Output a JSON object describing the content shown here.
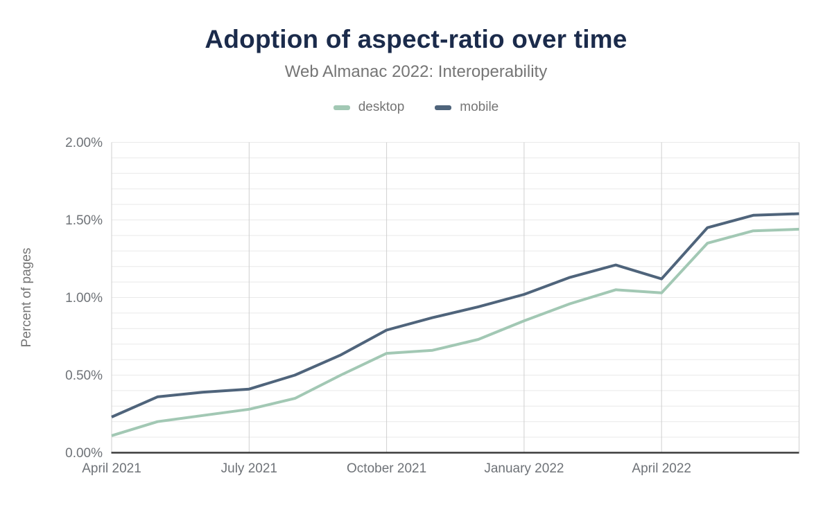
{
  "header": {
    "title": "Adoption of aspect-ratio over time",
    "subtitle": "Web Almanac 2022: Interoperability"
  },
  "legend": {
    "items": [
      {
        "label": "desktop",
        "color": "#a2c8b4"
      },
      {
        "label": "mobile",
        "color": "#4f647b"
      }
    ]
  },
  "chart_data": {
    "type": "line",
    "title": "Adoption of aspect-ratio over time",
    "subtitle": "Web Almanac 2022: Interoperability",
    "xlabel": "",
    "ylabel": "Percent of pages",
    "ylim": [
      0,
      2
    ],
    "y_major_step": 0.5,
    "y_minor_step": 0.1,
    "y_tick_labels": [
      "0.00%",
      "0.50%",
      "1.00%",
      "1.50%",
      "2.00%"
    ],
    "grid": "horizontal minor gridlines every 0.1%, vertical gridlines at quarterly ticks",
    "legend_position": "top",
    "x": [
      "2021-04",
      "2021-05",
      "2021-06",
      "2021-07",
      "2021-08",
      "2021-09",
      "2021-10",
      "2021-11",
      "2021-12",
      "2022-01",
      "2022-02",
      "2022-03",
      "2022-04",
      "2022-05",
      "2022-06",
      "2022-07"
    ],
    "x_ticks": [
      {
        "index": 0,
        "label": "April 2021"
      },
      {
        "index": 3,
        "label": "July 2021"
      },
      {
        "index": 6,
        "label": "October 2021"
      },
      {
        "index": 9,
        "label": "January 2022"
      },
      {
        "index": 12,
        "label": "April 2022"
      }
    ],
    "series": [
      {
        "name": "desktop",
        "color": "#a2c8b4",
        "values": [
          0.11,
          0.2,
          0.24,
          0.28,
          0.35,
          0.5,
          0.64,
          0.66,
          0.73,
          0.85,
          0.96,
          1.05,
          1.03,
          1.35,
          1.43,
          1.44
        ]
      },
      {
        "name": "mobile",
        "color": "#4f647b",
        "values": [
          0.23,
          0.36,
          0.39,
          0.41,
          0.5,
          0.63,
          0.79,
          0.87,
          0.94,
          1.02,
          1.13,
          1.21,
          1.12,
          1.45,
          1.53,
          1.54
        ]
      }
    ]
  },
  "colors": {
    "title_text": "#1b2b4b",
    "muted_text": "#757575",
    "tick_text": "#6e7277",
    "axis_line": "#3a3a3a",
    "vertical_grid": "#cfcfcf",
    "horizontal_grid": "#e9e9e9",
    "background": "#ffffff"
  }
}
